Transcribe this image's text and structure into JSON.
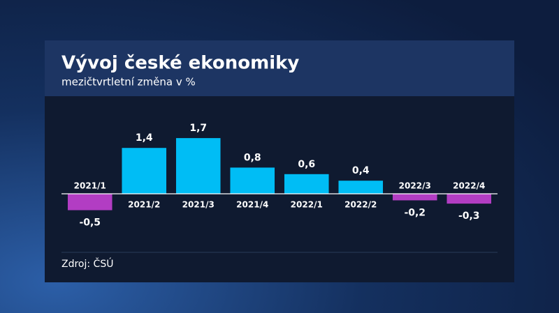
{
  "chart_data": {
    "type": "bar",
    "title": "Vývoj české ekonomiky",
    "subtitle": "mezičtvrtletní změna v %",
    "source": "Zdroj: ČSÚ",
    "categories": [
      "2021/1",
      "2021/2",
      "2021/3",
      "2021/4",
      "2022/1",
      "2022/2",
      "2022/3",
      "2022/4"
    ],
    "values": [
      -0.5,
      1.4,
      1.7,
      0.8,
      0.6,
      0.4,
      -0.2,
      -0.3
    ],
    "value_labels": [
      "-0,5",
      "1,4",
      "1,7",
      "0,8",
      "0,6",
      "0,4",
      "-0,2",
      "-0,3"
    ],
    "color": "#00bdf5",
    "negative_color": "#b23dc3"
  }
}
